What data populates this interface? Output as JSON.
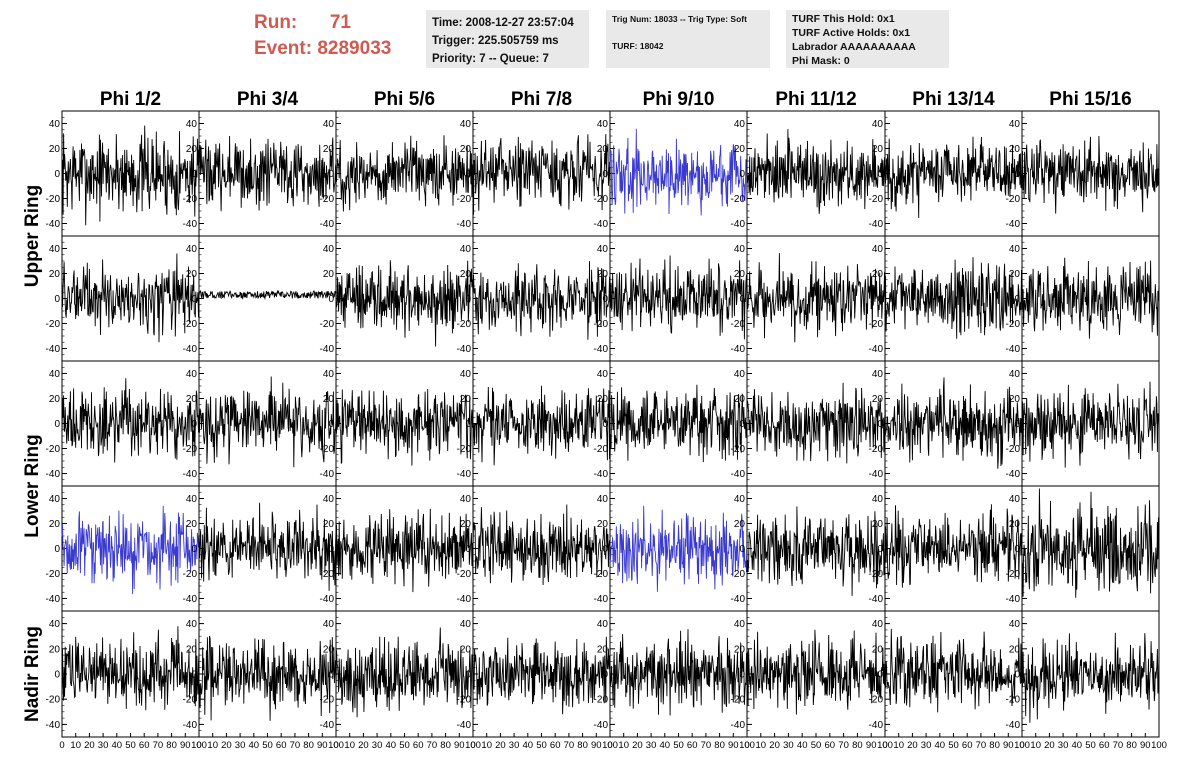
{
  "header": {
    "run_label": "Run:",
    "run_value": "71",
    "event_label": "Event:",
    "event_value": "8289033",
    "time_box": [
      "Time: 2008-12-27 23:57:04",
      "Trigger: 225.505759 ms",
      "Priority: 7 -- Queue: 7"
    ],
    "trig_box": [
      "Trig Num: 18033 -- Trig Type: Soft",
      "TURF: 18042"
    ],
    "turf_box": [
      "TURF This Hold: 0x1",
      "TURF Active Holds: 0x1",
      "Labrador AAAAAAAAAA",
      "Phi Mask: 0"
    ]
  },
  "colors": {
    "header_red": "#d05a50",
    "info_box_bg": "#e9e9e9",
    "trace_default": "#000000",
    "trace_highlight": "#3a3ad0"
  },
  "chart_data": {
    "type": "line",
    "description_of_content": "waveform grid",
    "column_titles": [
      "Phi 1/2",
      "Phi 3/4",
      "Phi 5/6",
      "Phi 7/8",
      "Phi 9/10",
      "Phi 11/12",
      "Phi 13/14",
      "Phi 15/16"
    ],
    "row_group_labels": [
      "Upper Ring",
      "Lower Ring",
      "Nadir Ring"
    ],
    "row_group_spans": [
      [
        0,
        1
      ],
      [
        2,
        3
      ],
      [
        4,
        4
      ]
    ],
    "rows": 5,
    "xlim": [
      0,
      100
    ],
    "ylim": [
      -50,
      50
    ],
    "yticks": [
      -40,
      -20,
      0,
      20,
      40
    ],
    "xticks": [
      0,
      10,
      20,
      30,
      40,
      50,
      60,
      70,
      80,
      90,
      100
    ],
    "x_tick_labels_shown": [
      "0",
      "10",
      "20",
      "30",
      "40",
      "50",
      "60",
      "70",
      "80",
      "90",
      "100"
    ],
    "highlighted_panels": [
      [
        0,
        4
      ],
      [
        3,
        0
      ],
      [
        3,
        4
      ]
    ],
    "low_amplitude_panels": [
      [
        1,
        1
      ]
    ],
    "series": [
      {
        "panel": [
          0,
          0
        ],
        "amplitude": 25
      },
      {
        "panel": [
          1,
          1
        ],
        "amplitude": 3
      },
      {
        "panel": [
          3,
          7
        ],
        "amplitude": 28
      }
    ]
  }
}
